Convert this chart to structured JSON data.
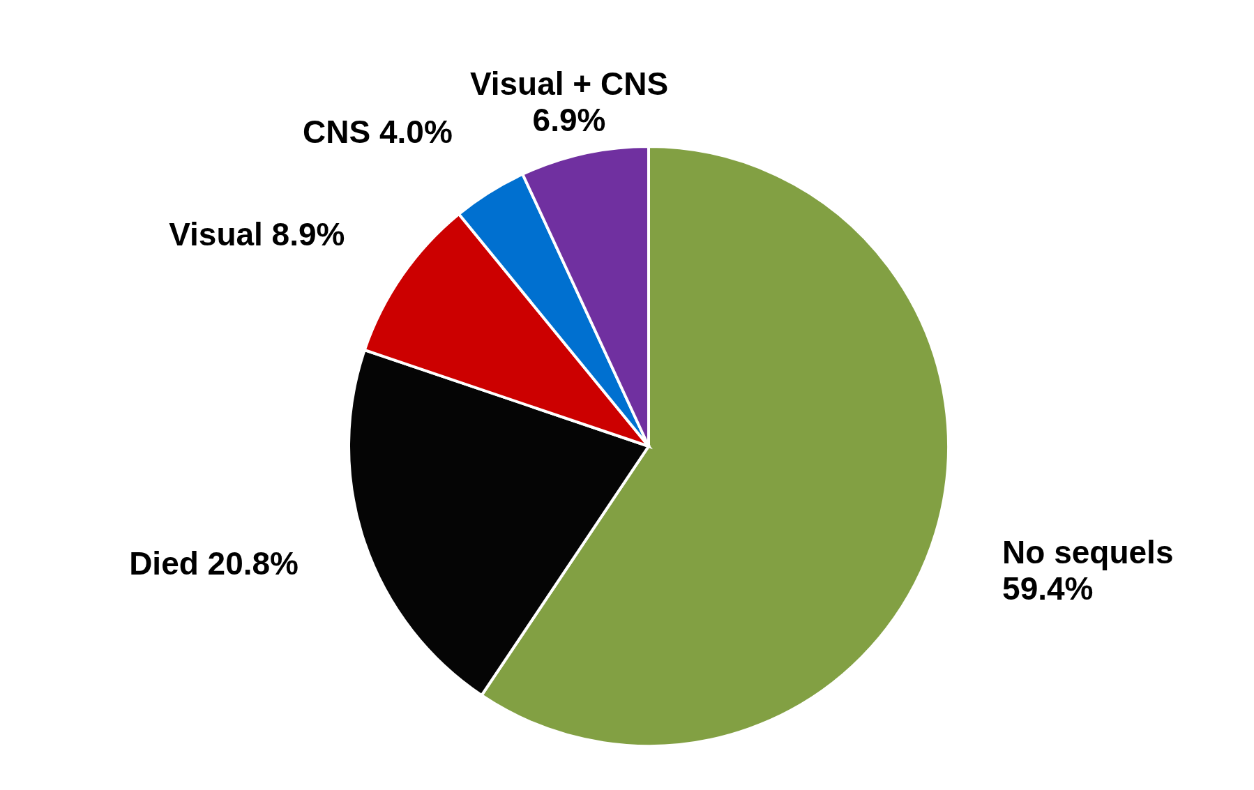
{
  "chart_data": {
    "type": "pie",
    "categories": [
      "No sequels",
      "Died",
      "Visual",
      "CNS",
      "Visual + CNS"
    ],
    "values": [
      59.4,
      20.8,
      8.9,
      4.0,
      6.9
    ],
    "value_labels": [
      "59.4%",
      "20.8%",
      "8.9%",
      "4.0%",
      "6.9%"
    ],
    "colors": [
      "#82a043",
      "#050505",
      "#cc0000",
      "#0070d0",
      "#7030a0"
    ]
  }
}
